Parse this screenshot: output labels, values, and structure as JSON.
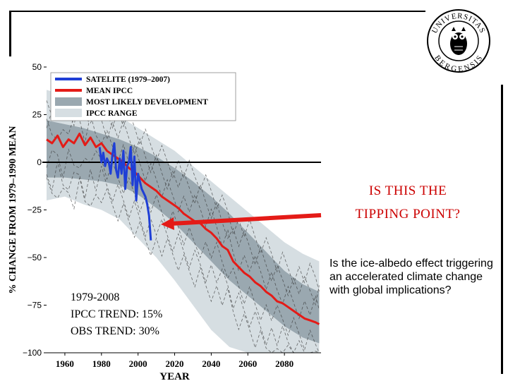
{
  "slide": {
    "title_line1": "IS THIS THE",
    "title_line2": "TIPPING POINT?",
    "note": "Is the ice-albedo effect triggering an accelerated climate change with global implications?",
    "trend_label": "1979-2008",
    "ipcc_trend": "IPCC TREND:  15%",
    "obs_trend": "OBS TREND:   30%",
    "logo_text_top": "UNIVERSITAS",
    "logo_text_bottom": "BERGENSIS",
    "colors": {
      "title": "#cc0000",
      "satellite": "#1f3fd6",
      "ipcc": "#e41b17",
      "likely": "#9aa8b0",
      "range": "#d6dee2"
    }
  },
  "chart_data": {
    "type": "line",
    "title": "",
    "xlabel": "YEAR",
    "ylabel": "% CHANGE FROM 1979–1990 MEAN",
    "xlim": [
      1950,
      2100
    ],
    "ylim": [
      -100,
      50
    ],
    "xticks": [
      1960,
      1980,
      2000,
      2020,
      2040,
      2060,
      2080
    ],
    "yticks": [
      50,
      25,
      0,
      -25,
      -50,
      -75,
      -100
    ],
    "ytick_labels": [
      "50",
      "25",
      "0",
      "−25",
      "−50",
      "−75",
      "−100"
    ],
    "legend": [
      {
        "label": "SATELITE (1979–2007)",
        "kind": "line",
        "color": "#1f3fd6"
      },
      {
        "label": "MEAN IPCC",
        "kind": "line",
        "color": "#e41b17"
      },
      {
        "label": "MOST LIKELY DEVELOPMENT",
        "kind": "band",
        "color": "#9aa8b0"
      },
      {
        "label": "IPCC RANGE",
        "kind": "band",
        "color": "#d6dee2"
      }
    ],
    "ipcc_range": {
      "x": [
        1950,
        1960,
        1970,
        1980,
        1990,
        2000,
        2010,
        2020,
        2030,
        2040,
        2050,
        2060,
        2070,
        2080,
        2090,
        2099
      ],
      "upper": [
        38,
        35,
        32,
        28,
        24,
        18,
        12,
        6,
        -2,
        -10,
        -18,
        -26,
        -34,
        -42,
        -48,
        -52
      ],
      "lower": [
        -20,
        -18,
        -22,
        -25,
        -30,
        -40,
        -50,
        -62,
        -75,
        -88,
        -97,
        -100,
        -100,
        -100,
        -100,
        -100
      ]
    },
    "likely_band": {
      "x": [
        1950,
        1960,
        1970,
        1980,
        1990,
        2000,
        2010,
        2020,
        2030,
        2040,
        2050,
        2060,
        2070,
        2080,
        2090,
        2099
      ],
      "upper": [
        22,
        20,
        18,
        15,
        12,
        8,
        3,
        -3,
        -10,
        -18,
        -27,
        -37,
        -47,
        -57,
        -64,
        -68
      ],
      "lower": [
        -8,
        -8,
        -9,
        -10,
        -12,
        -17,
        -24,
        -32,
        -42,
        -52,
        -62,
        -70,
        -78,
        -86,
        -92,
        -95
      ]
    },
    "series": [
      {
        "name": "MEAN IPCC",
        "x": [
          1950,
          1953,
          1956,
          1959,
          1962,
          1965,
          1968,
          1971,
          1974,
          1977,
          1980,
          1983,
          1986,
          1989,
          1992,
          1995,
          1998,
          2001,
          2004,
          2007,
          2010,
          2013,
          2016,
          2019,
          2022,
          2025,
          2028,
          2031,
          2034,
          2037,
          2040,
          2043,
          2046,
          2049,
          2052,
          2055,
          2058,
          2061,
          2064,
          2067,
          2070,
          2073,
          2076,
          2079,
          2082,
          2085,
          2088,
          2091,
          2094,
          2097,
          2099
        ],
        "y": [
          12,
          10,
          14,
          8,
          12,
          10,
          15,
          9,
          13,
          8,
          10,
          6,
          4,
          2,
          0,
          -3,
          -5,
          -8,
          -11,
          -13,
          -15,
          -18,
          -20,
          -22,
          -24,
          -27,
          -29,
          -31,
          -32,
          -35,
          -37,
          -40,
          -44,
          -46,
          -52,
          -55,
          -58,
          -60,
          -63,
          -65,
          -68,
          -70,
          -73,
          -74,
          -76,
          -78,
          -80,
          -82,
          -83,
          -84,
          -85
        ]
      },
      {
        "name": "SATELITE (1979–2007)",
        "x": [
          1979,
          1980,
          1981,
          1982,
          1983,
          1984,
          1985,
          1986,
          1987,
          1988,
          1989,
          1990,
          1991,
          1992,
          1993,
          1994,
          1995,
          1996,
          1997,
          1998,
          1999,
          2000,
          2001,
          2002,
          2003,
          2004,
          2005,
          2006,
          2007
        ],
        "y": [
          8,
          0,
          5,
          -2,
          2,
          0,
          -6,
          4,
          10,
          -4,
          -8,
          2,
          -6,
          6,
          -14,
          -2,
          0,
          8,
          -12,
          3,
          -20,
          -6,
          -10,
          -14,
          -16,
          -18,
          -22,
          -28,
          -41
        ]
      }
    ],
    "annotations": [
      {
        "text": "IS THIS THE TIPPING POINT?",
        "arrow_to": {
          "x": 2008,
          "y": -40
        }
      }
    ]
  }
}
